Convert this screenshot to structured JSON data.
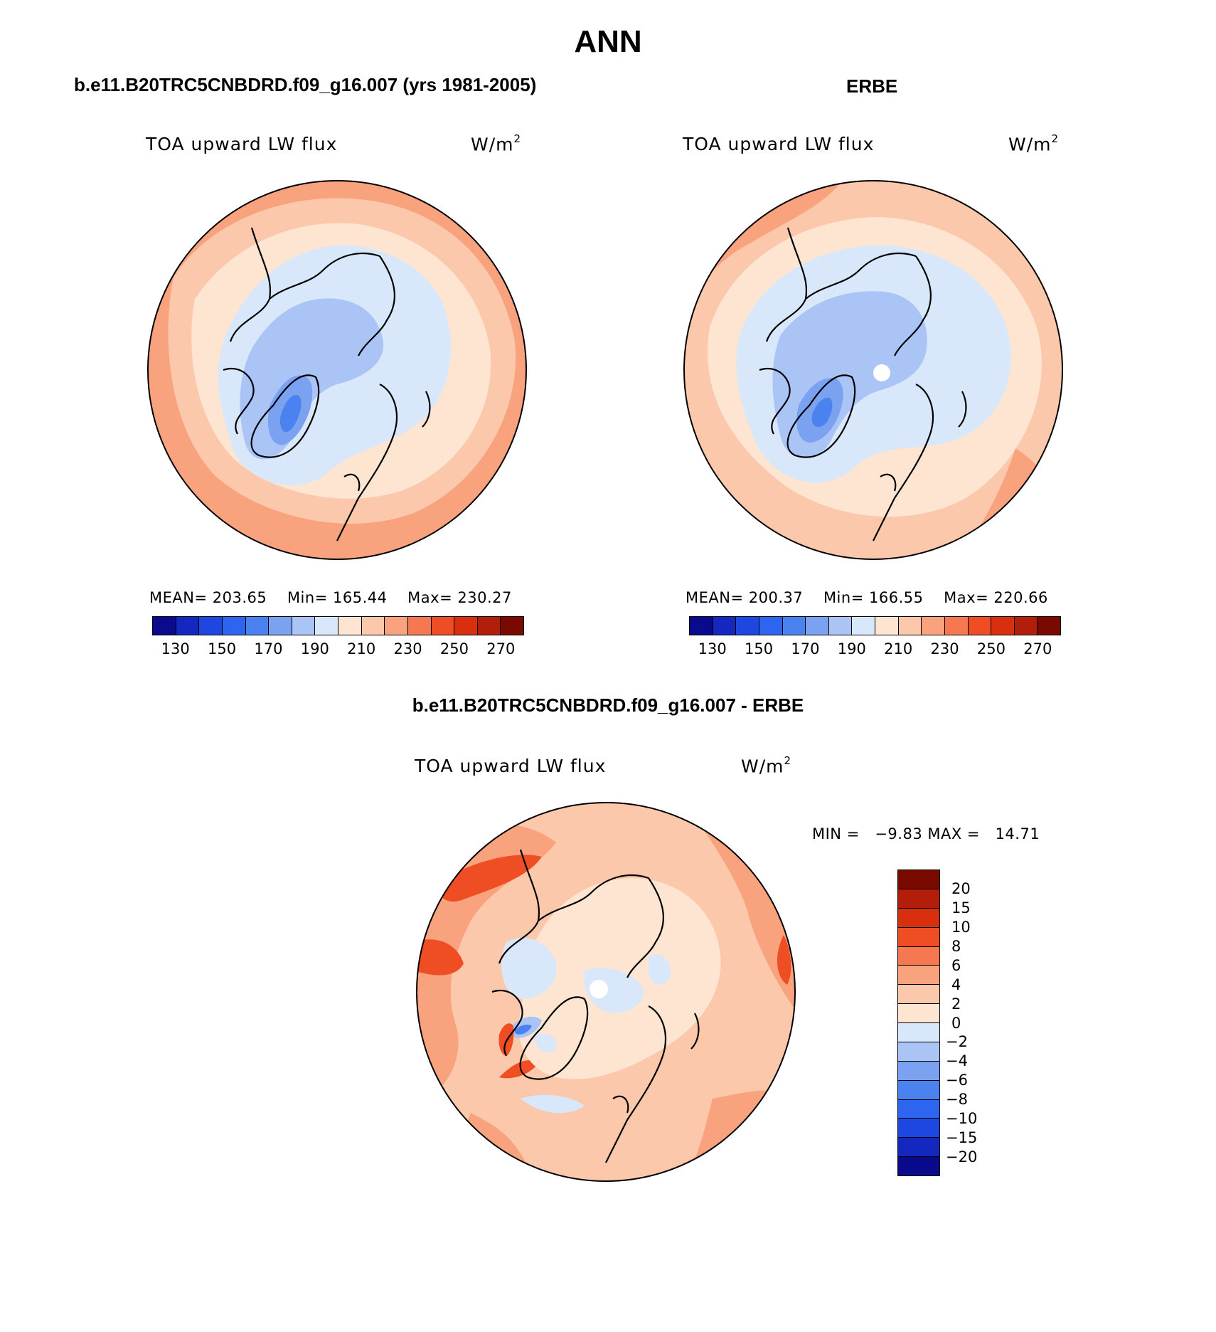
{
  "title": "ANN",
  "panels": {
    "model": {
      "title": "b.e11.B20TRC5CNBDRD.f09_g16.007 (yrs 1981-2005)",
      "variable": "TOA upward LW flux",
      "unit_base": "W/m",
      "unit_exp": "2",
      "mean_label": "MEAN=",
      "mean": "203.65",
      "min_label": "Min=",
      "min": "165.44",
      "max_label": "Max=",
      "max": "230.27"
    },
    "obs": {
      "title": "ERBE",
      "variable": "TOA upward LW flux",
      "unit_base": "W/m",
      "unit_exp": "2",
      "mean_label": "MEAN=",
      "mean": "200.37",
      "min_label": "Min=",
      "min": "166.55",
      "max_label": "Max=",
      "max": "220.66"
    },
    "diff": {
      "title": "b.e11.B20TRC5CNBDRD.f09_g16.007 - ERBE",
      "variable": "TOA upward LW flux",
      "unit_base": "W/m",
      "unit_exp": "2",
      "min_label": "MIN =",
      "min": "−9.83",
      "max_label": "MAX =",
      "max": "14.71"
    }
  },
  "colorbar_abs": {
    "colors": [
      "#0a0a8c",
      "#1428c0",
      "#1e46e0",
      "#2d64f0",
      "#4a82f0",
      "#7aa2f0",
      "#aac4f5",
      "#d8e8fa",
      "#fde5d2",
      "#fcc8ac",
      "#f9a27e",
      "#f67850",
      "#ef4e24",
      "#d8300e",
      "#b21e0a",
      "#7a0a00"
    ],
    "tick_labels": [
      "130",
      "150",
      "170",
      "190",
      "210",
      "230",
      "250",
      "270"
    ]
  },
  "colorbar_diff": {
    "colors": [
      "#7a0a00",
      "#b21e0a",
      "#d8300e",
      "#ef4e24",
      "#f67850",
      "#f9a27e",
      "#fcc8ac",
      "#fde5d2",
      "#d8e8fa",
      "#aac4f5",
      "#7aa2f0",
      "#4a82f0",
      "#2d64f0",
      "#1e46e0",
      "#1428c0",
      "#0a0a8c"
    ],
    "tick_labels": [
      "20",
      "15",
      "10",
      "8",
      "6",
      "4",
      "2",
      "0",
      "−2",
      "−4",
      "−6",
      "−8",
      "−10",
      "−15",
      "−20"
    ]
  },
  "map_colors": {
    "outer_warm": "#f9a27e",
    "mid_warm": "#fcc8ac",
    "light_warm": "#fde5d2",
    "light_cool": "#d8e8fa",
    "cool": "#aac4f5",
    "mid_cool": "#7aa2f0",
    "deep_cool": "#4a82f0",
    "strong_warm": "#ef4e24",
    "coast": "#000000"
  }
}
